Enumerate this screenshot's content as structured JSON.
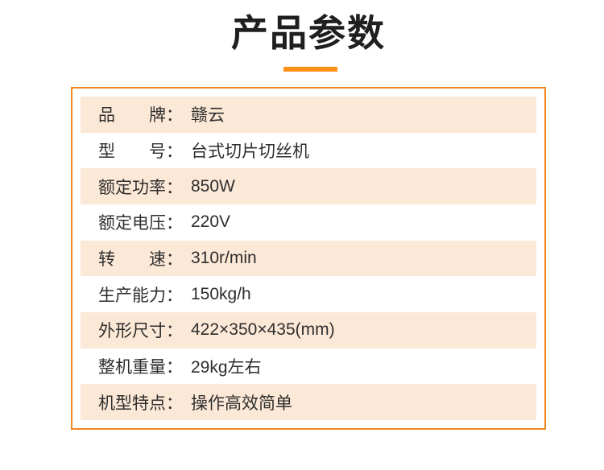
{
  "header": {
    "title": "产品参数"
  },
  "theme": {
    "accent_orange": "#FF9015",
    "table_border_orange": "#F0861E",
    "row_peach": "#FCE8D6",
    "text_dark": "#2E2E2E"
  },
  "table": {
    "rows": [
      {
        "key": "brand",
        "label": "品　　牌：",
        "value": "赣云"
      },
      {
        "key": "model",
        "label": "型　　号：",
        "value": "台式切片切丝机"
      },
      {
        "key": "rated_power",
        "label": "额定功率：",
        "value": "850W"
      },
      {
        "key": "rated_voltage",
        "label": "额定电压：",
        "value": "220V"
      },
      {
        "key": "speed",
        "label": "转　　速：",
        "value": "310r/min"
      },
      {
        "key": "capacity",
        "label": "生产能力：",
        "value": "150kg/h"
      },
      {
        "key": "dimensions",
        "label": "外形尺寸：",
        "value": "422×350×435(mm)"
      },
      {
        "key": "weight",
        "label": "整机重量：",
        "value": "29kg左右"
      },
      {
        "key": "features",
        "label": "机型特点：",
        "value": "操作高效简单"
      }
    ]
  }
}
